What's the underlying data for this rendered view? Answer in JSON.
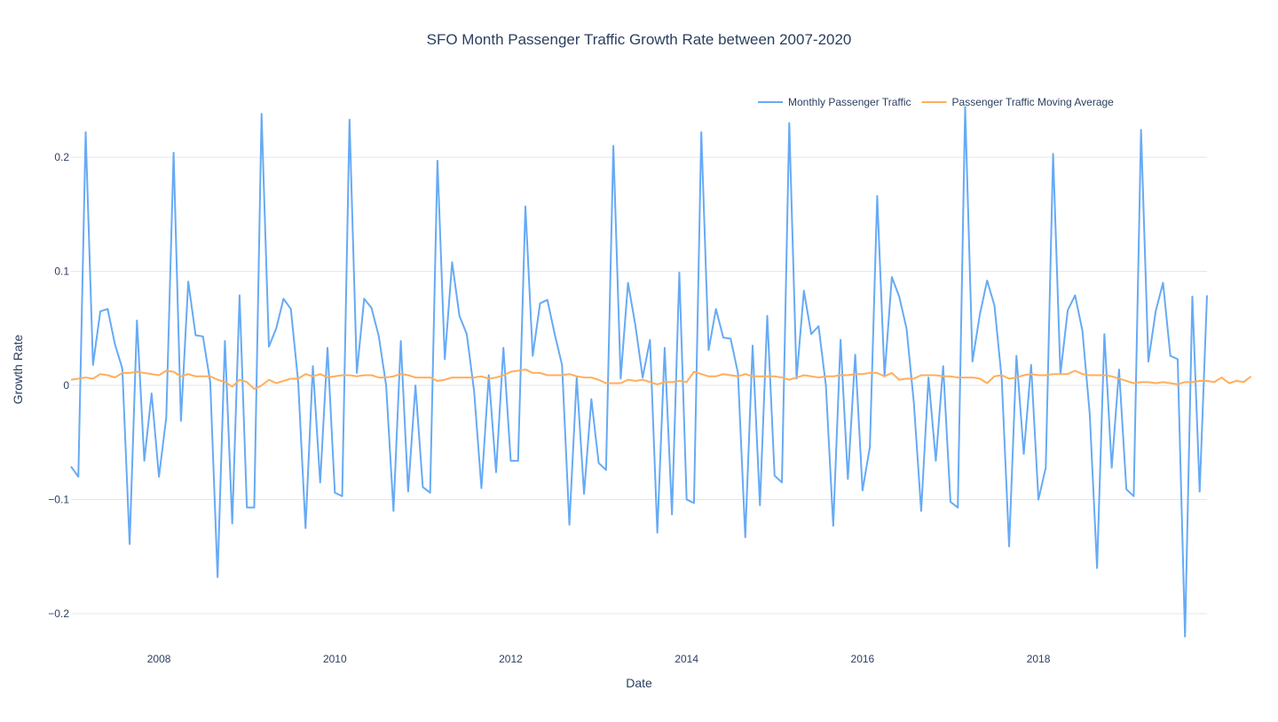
{
  "chart_data": {
    "type": "line",
    "title": "SFO Month Passenger Traffic Growth Rate between 2007-2020",
    "xlabel": "Date",
    "ylabel": "Growth Rate",
    "x_start": "2007-01",
    "x_end": "2019-12",
    "xlim": [
      "2007-01",
      "2019-12"
    ],
    "ylim": [
      -0.235,
      0.26
    ],
    "x_ticks": [
      {
        "date": "2008-01",
        "label": "2008"
      },
      {
        "date": "2010-01",
        "label": "2010"
      },
      {
        "date": "2012-01",
        "label": "2012"
      },
      {
        "date": "2014-01",
        "label": "2014"
      },
      {
        "date": "2016-01",
        "label": "2016"
      },
      {
        "date": "2018-01",
        "label": "2018"
      }
    ],
    "y_ticks": [
      {
        "value": 0.2,
        "label": "0.2"
      },
      {
        "value": 0.1,
        "label": "0.1"
      },
      {
        "value": 0,
        "label": "0"
      },
      {
        "value": -0.1,
        "label": "−0.1"
      },
      {
        "value": -0.2,
        "label": "−0.2"
      }
    ],
    "grid": true,
    "legend_position": "top-right",
    "series": [
      {
        "name": "Monthly Passenger Traffic",
        "color": "#66aaf5",
        "values": [
          -0.071,
          -0.08,
          0.222,
          0.018,
          0.065,
          0.067,
          0.036,
          0.015,
          -0.139,
          0.057,
          -0.066,
          -0.007,
          -0.08,
          -0.028,
          0.204,
          -0.031,
          0.091,
          0.044,
          0.043,
          0.003,
          -0.168,
          0.039,
          -0.121,
          0.079,
          -0.107,
          -0.107,
          0.238,
          0.034,
          0.05,
          0.076,
          0.067,
          0.003,
          -0.125,
          0.017,
          -0.085,
          0.033,
          -0.094,
          -0.097,
          0.233,
          0.011,
          0.076,
          0.068,
          0.043,
          0.0,
          -0.11,
          0.039,
          -0.093,
          0.0,
          -0.089,
          -0.094,
          0.197,
          0.023,
          0.108,
          0.061,
          0.045,
          -0.005,
          -0.09,
          0.009,
          -0.076,
          0.033,
          -0.066,
          -0.066,
          0.157,
          0.026,
          0.072,
          0.075,
          0.045,
          0.018,
          -0.122,
          0.007,
          -0.095,
          -0.012,
          -0.068,
          -0.074,
          0.21,
          0.006,
          0.09,
          0.053,
          0.007,
          0.04,
          -0.129,
          0.033,
          -0.113,
          0.099,
          -0.1,
          -0.103,
          0.222,
          0.031,
          0.067,
          0.042,
          0.041,
          0.011,
          -0.133,
          0.035,
          -0.105,
          0.061,
          -0.079,
          -0.085,
          0.23,
          0.006,
          0.083,
          0.045,
          0.052,
          0.0,
          -0.123,
          0.04,
          -0.082,
          0.027,
          -0.092,
          -0.054,
          0.166,
          0.008,
          0.095,
          0.078,
          0.05,
          -0.015,
          -0.11,
          0.007,
          -0.066,
          0.017,
          -0.102,
          -0.107,
          0.244,
          0.021,
          0.062,
          0.092,
          0.07,
          0.005,
          -0.141,
          0.026,
          -0.06,
          0.018,
          -0.1,
          -0.072,
          0.203,
          0.01,
          0.066,
          0.079,
          0.048,
          -0.025,
          -0.16,
          0.045,
          -0.072,
          0.014,
          -0.091,
          -0.097,
          0.224,
          0.021,
          0.065,
          0.09,
          0.026,
          0.023,
          -0.22,
          0.078,
          -0.093,
          0.079
        ]
      },
      {
        "name": "Passenger Traffic Moving Average",
        "color": "#ffae5c",
        "values": [
          0.005,
          0.006,
          0.007,
          0.006,
          0.01,
          0.009,
          0.007,
          0.011,
          0.011,
          0.012,
          0.011,
          0.01,
          0.009,
          0.013,
          0.012,
          0.008,
          0.01,
          0.008,
          0.008,
          0.008,
          0.005,
          0.003,
          -0.001,
          0.005,
          0.003,
          -0.003,
          0.0,
          0.005,
          0.002,
          0.004,
          0.006,
          0.006,
          0.01,
          0.008,
          0.01,
          0.007,
          0.008,
          0.009,
          0.009,
          0.008,
          0.009,
          0.009,
          0.007,
          0.007,
          0.008,
          0.01,
          0.009,
          0.007,
          0.007,
          0.007,
          0.004,
          0.005,
          0.007,
          0.007,
          0.007,
          0.007,
          0.008,
          0.006,
          0.007,
          0.009,
          0.012,
          0.013,
          0.014,
          0.011,
          0.011,
          0.009,
          0.009,
          0.009,
          0.01,
          0.008,
          0.007,
          0.007,
          0.005,
          0.002,
          0.002,
          0.002,
          0.005,
          0.004,
          0.005,
          0.003,
          0.001,
          0.003,
          0.003,
          0.004,
          0.003,
          0.012,
          0.01,
          0.008,
          0.008,
          0.01,
          0.009,
          0.008,
          0.01,
          0.008,
          0.008,
          0.008,
          0.008,
          0.007,
          0.005,
          0.007,
          0.009,
          0.008,
          0.007,
          0.008,
          0.008,
          0.009,
          0.009,
          0.01,
          0.01,
          0.011,
          0.011,
          0.008,
          0.011,
          0.005,
          0.006,
          0.006,
          0.009,
          0.009,
          0.009,
          0.008,
          0.008,
          0.007,
          0.007,
          0.007,
          0.006,
          0.002,
          0.008,
          0.009,
          0.006,
          0.007,
          0.009,
          0.01,
          0.009,
          0.009,
          0.01,
          0.01,
          0.01,
          0.013,
          0.01,
          0.009,
          0.009,
          0.009,
          0.008,
          0.006,
          0.004,
          0.002,
          0.003,
          0.003,
          0.002,
          0.003,
          0.002,
          0.001,
          0.003,
          0.003,
          0.004,
          0.004,
          0.003,
          0.007,
          0.002,
          0.004,
          0.003,
          0.008
        ]
      }
    ]
  }
}
